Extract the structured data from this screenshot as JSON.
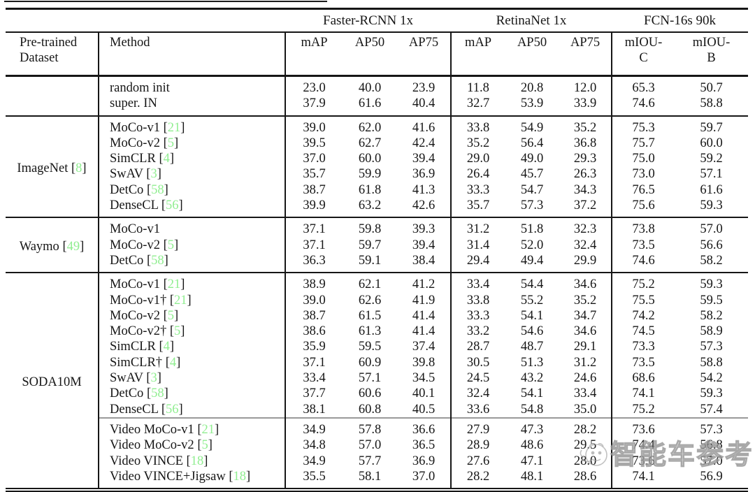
{
  "colors": {
    "cite": "#90ee90",
    "subrule_gray": "#9a9a9a"
  },
  "watermark": {
    "text": "智能车参考"
  },
  "header": {
    "dataset_line1": "Pre-trained",
    "dataset_line2": "Dataset",
    "method": "Method",
    "groups": [
      {
        "label": "Faster-RCNN 1x",
        "cols": [
          "mAP",
          "AP50",
          "AP75"
        ]
      },
      {
        "label": "RetinaNet 1x",
        "cols": [
          "mAP",
          "AP50",
          "AP75"
        ]
      },
      {
        "label": "FCN-16s 90k",
        "cols": [
          "mIOU-\nC",
          "mIOU-\nB"
        ]
      }
    ]
  },
  "table": {
    "groups": [
      {
        "dataset": "",
        "cite": "",
        "rows": [
          {
            "method": "random init",
            "cite": "",
            "vals": [
              "23.0",
              "40.0",
              "23.9",
              "11.8",
              "20.8",
              "12.0",
              "65.3",
              "50.7"
            ]
          },
          {
            "method": "super. IN",
            "cite": "",
            "vals": [
              "37.9",
              "61.6",
              "40.4",
              "32.7",
              "53.9",
              "33.9",
              "74.6",
              "58.8"
            ]
          }
        ]
      },
      {
        "dataset": "ImageNet",
        "cite": "8",
        "rows": [
          {
            "method": "MoCo-v1",
            "cite": "21",
            "vals": [
              "39.0",
              "62.0",
              "41.6",
              "33.8",
              "54.9",
              "35.2",
              "75.3",
              "59.7"
            ]
          },
          {
            "method": "MoCo-v2",
            "cite": "5",
            "vals": [
              "39.5",
              "62.7",
              "42.4",
              "35.2",
              "56.4",
              "36.8",
              "75.7",
              "60.0"
            ]
          },
          {
            "method": "SimCLR",
            "cite": "4",
            "vals": [
              "37.0",
              "60.0",
              "39.4",
              "29.0",
              "49.0",
              "29.3",
              "75.0",
              "59.2"
            ]
          },
          {
            "method": "SwAV",
            "cite": "3",
            "vals": [
              "35.7",
              "59.9",
              "36.9",
              "26.4",
              "45.7",
              "26.3",
              "73.0",
              "57.1"
            ]
          },
          {
            "method": "DetCo",
            "cite": "58",
            "vals": [
              "38.7",
              "61.8",
              "41.3",
              "33.3",
              "54.7",
              "34.3",
              "76.5",
              "61.6"
            ]
          },
          {
            "method": "DenseCL",
            "cite": "56",
            "vals": [
              "39.9",
              "63.2",
              "42.6",
              "35.7",
              "57.3",
              "37.2",
              "75.6",
              "59.3"
            ]
          }
        ]
      },
      {
        "dataset": "Waymo",
        "cite": "49",
        "rows": [
          {
            "method": "MoCo-v1",
            "cite": "",
            "vals": [
              "37.1",
              "59.8",
              "39.3",
              "31.2",
              "51.8",
              "32.3",
              "73.8",
              "57.0"
            ]
          },
          {
            "method": "MoCo-v2",
            "cite": "5",
            "vals": [
              "37.1",
              "59.7",
              "39.4",
              "31.4",
              "52.0",
              "32.4",
              "73.5",
              "56.6"
            ]
          },
          {
            "method": "DetCo",
            "cite": "58",
            "vals": [
              "36.3",
              "59.1",
              "38.4",
              "29.4",
              "49.4",
              "29.9",
              "74.6",
              "58.2"
            ]
          }
        ]
      },
      {
        "dataset": "SODA10M",
        "cite": "",
        "rows": [
          {
            "method": "MoCo-v1",
            "cite": "21",
            "vals": [
              "38.9",
              "62.1",
              "41.2",
              "33.4",
              "54.4",
              "34.6",
              "75.2",
              "59.3"
            ]
          },
          {
            "method": "MoCo-v1†",
            "cite": "21",
            "vals": [
              "39.0",
              "62.6",
              "41.9",
              "33.8",
              "55.2",
              "35.2",
              "75.5",
              "59.5"
            ]
          },
          {
            "method": "MoCo-v2",
            "cite": "5",
            "vals": [
              "38.7",
              "61.5",
              "41.4",
              "33.3",
              "54.1",
              "34.7",
              "74.2",
              "58.2"
            ]
          },
          {
            "method": "MoCo-v2†",
            "cite": "5",
            "vals": [
              "38.6",
              "61.3",
              "41.4",
              "33.2",
              "54.6",
              "34.6",
              "74.5",
              "58.9"
            ]
          },
          {
            "method": "SimCLR",
            "cite": "4",
            "vals": [
              "35.9",
              "59.5",
              "37.4",
              "28.7",
              "48.7",
              "29.1",
              "73.3",
              "57.3"
            ]
          },
          {
            "method": "SimCLR†",
            "cite": "4",
            "vals": [
              "37.1",
              "60.9",
              "39.8",
              "30.5",
              "51.3",
              "31.2",
              "73.5",
              "58.8"
            ]
          },
          {
            "method": "SwAV",
            "cite": "3",
            "vals": [
              "33.4",
              "57.1",
              "34.5",
              "24.5",
              "43.2",
              "24.6",
              "68.6",
              "54.2"
            ]
          },
          {
            "method": "DetCo",
            "cite": "58",
            "vals": [
              "37.7",
              "60.6",
              "40.1",
              "32.4",
              "54.1",
              "33.4",
              "74.1",
              "59.3"
            ]
          },
          {
            "method": "DenseCL",
            "cite": "56",
            "vals": [
              "38.1",
              "60.8",
              "40.5",
              "33.6",
              "54.8",
              "35.0",
              "75.2",
              "57.4"
            ]
          },
          {
            "method": "Video MoCo-v1",
            "cite": "21",
            "subsep": true,
            "vals": [
              "34.9",
              "57.8",
              "36.6",
              "27.9",
              "47.3",
              "28.2",
              "73.6",
              "57.3"
            ]
          },
          {
            "method": "Video MoCo-v2",
            "cite": "5",
            "vals": [
              "34.8",
              "57.0",
              "36.5",
              "28.9",
              "48.6",
              "29.5",
              "74.4",
              "56.8"
            ]
          },
          {
            "method": "Video VINCE",
            "cite": "18",
            "vals": [
              "34.9",
              "57.7",
              "36.9",
              "27.6",
              "47.1",
              "28.0",
              "73.6",
              "57.0"
            ]
          },
          {
            "method": "Video VINCE+Jigsaw",
            "cite": "18",
            "vals": [
              "35.5",
              "58.1",
              "37.0",
              "28.2",
              "48.1",
              "28.6",
              "74.1",
              "56.9"
            ]
          }
        ]
      }
    ]
  }
}
